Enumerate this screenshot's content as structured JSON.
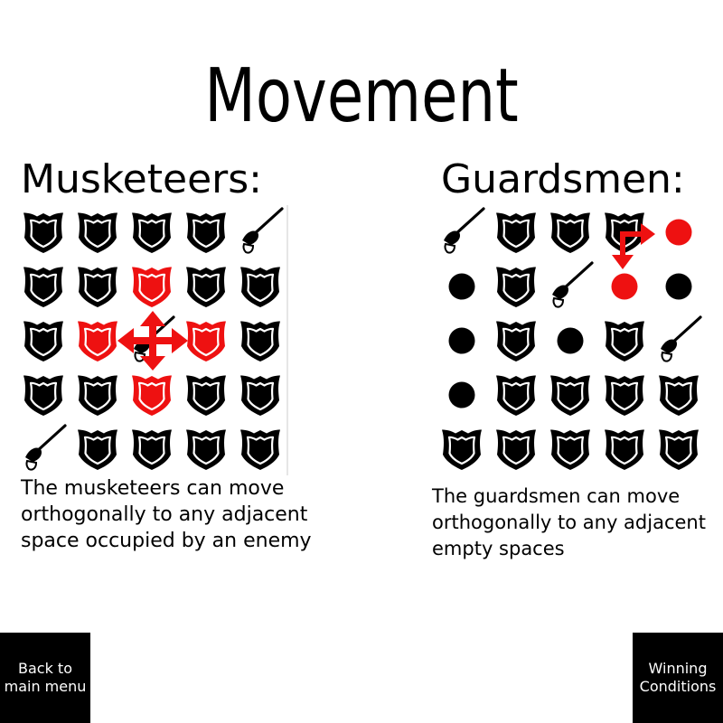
{
  "page": {
    "title": "Movement"
  },
  "musketeers": {
    "heading": "Musketeers:",
    "description": "The musketeers can move\northogonally to any adjacent\nspace occupied by an enemy",
    "board": [
      [
        "shield",
        "shield",
        "shield",
        "shield",
        "sword"
      ],
      [
        "shield",
        "shield",
        "shield-red",
        "shield",
        "shield"
      ],
      [
        "shield",
        "shield-red",
        "sword",
        "shield-red",
        "shield"
      ],
      [
        "shield",
        "shield",
        "shield-red",
        "shield",
        "shield"
      ],
      [
        "sword",
        "shield",
        "shield",
        "shield",
        "shield"
      ]
    ]
  },
  "guardsmen": {
    "heading": "Guardsmen:",
    "description": "The guardsmen can move\northogonally to any adjacent\nempty spaces",
    "board": [
      [
        "sword",
        "shield",
        "shield",
        "shield",
        "dot-red"
      ],
      [
        "dot",
        "shield",
        "sword",
        "dot-red",
        "dot"
      ],
      [
        "dot",
        "shield",
        "dot",
        "shield",
        "sword"
      ],
      [
        "dot",
        "shield",
        "shield",
        "shield",
        "shield"
      ],
      [
        "shield",
        "shield",
        "shield",
        "shield",
        "shield"
      ]
    ]
  },
  "buttons": {
    "back": "Back to\nmain menu",
    "winning": "Winning\nConditions"
  },
  "colors": {
    "piece": "#000000",
    "highlight": "#ee1111",
    "background": "#ffffff"
  },
  "icons": {
    "enemy": "shield-icon",
    "musketeer": "sword-icon",
    "empty": "dot-icon",
    "move": "arrow-icon"
  }
}
